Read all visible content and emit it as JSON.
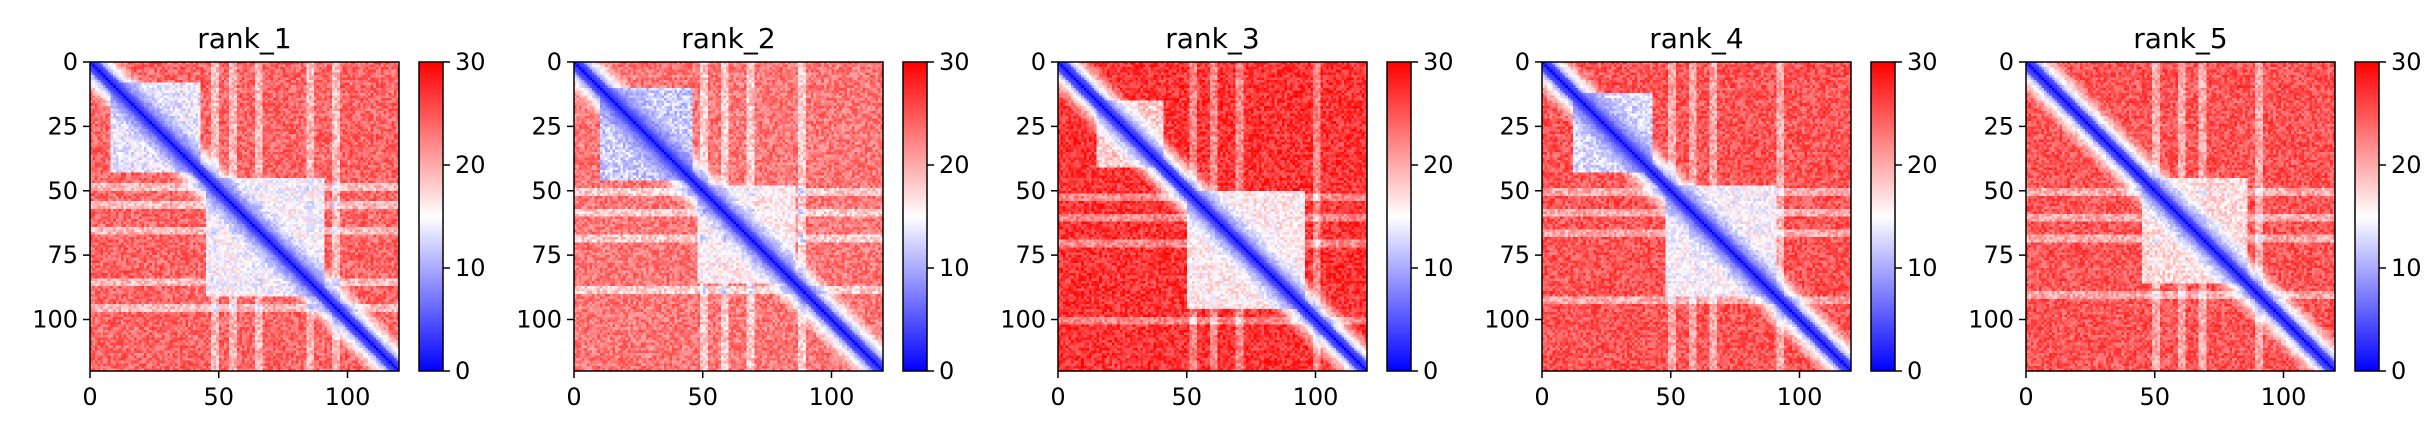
{
  "chart_data": [
    {
      "type": "heatmap",
      "title": "rank_1",
      "n": 120,
      "x_ticks": [
        0,
        50,
        100
      ],
      "y_ticks": [
        0,
        25,
        50,
        75,
        100
      ],
      "xlim": [
        0,
        120
      ],
      "ylim": [
        120,
        0
      ],
      "colorbar": {
        "min": 0,
        "max": 30,
        "ticks": [
          0,
          10,
          20,
          30
        ],
        "colormap": "bwr"
      },
      "pattern": {
        "diagonal_bands": [
          {
            "offset": 0,
            "width": 3,
            "value": 2
          }
        ],
        "blocks": [
          {
            "x": [
              8,
              42
            ],
            "y": [
              8,
              42
            ],
            "value": 11
          },
          {
            "x": [
              45,
              90
            ],
            "y": [
              45,
              90
            ],
            "value": 12
          }
        ],
        "stripe_rows": [
          48,
          55,
          65,
          85,
          95
        ],
        "base_value": 24
      }
    },
    {
      "type": "heatmap",
      "title": "rank_2",
      "n": 120,
      "x_ticks": [
        0,
        50,
        100
      ],
      "y_ticks": [
        0,
        25,
        50,
        75,
        100
      ],
      "xlim": [
        0,
        120
      ],
      "ylim": [
        120,
        0
      ],
      "colorbar": {
        "min": 0,
        "max": 30,
        "ticks": [
          0,
          10,
          20,
          30
        ],
        "colormap": "bwr"
      },
      "pattern": {
        "diagonal_bands": [
          {
            "offset": 0,
            "width": 3,
            "value": 2
          }
        ],
        "blocks": [
          {
            "x": [
              10,
              45
            ],
            "y": [
              10,
              45
            ],
            "value": 9
          },
          {
            "x": [
              48,
              85
            ],
            "y": [
              48,
              85
            ],
            "value": 13
          }
        ],
        "stripe_rows": [
          50,
          58,
          68,
          88
        ],
        "base_value": 23
      }
    },
    {
      "type": "heatmap",
      "title": "rank_3",
      "n": 120,
      "x_ticks": [
        0,
        50,
        100
      ],
      "y_ticks": [
        0,
        25,
        50,
        75,
        100
      ],
      "xlim": [
        0,
        120
      ],
      "ylim": [
        120,
        0
      ],
      "colorbar": {
        "min": 0,
        "max": 30,
        "ticks": [
          0,
          10,
          20,
          30
        ],
        "colormap": "bwr"
      },
      "pattern": {
        "diagonal_bands": [
          {
            "offset": 0,
            "width": 3,
            "value": 2
          }
        ],
        "blocks": [
          {
            "x": [
              15,
              40
            ],
            "y": [
              15,
              40
            ],
            "value": 15
          },
          {
            "x": [
              50,
              95
            ],
            "y": [
              50,
              95
            ],
            "value": 13
          }
        ],
        "stripe_rows": [
          52,
          60,
          70,
          100
        ],
        "base_value": 27
      }
    },
    {
      "type": "heatmap",
      "title": "rank_4",
      "n": 120,
      "x_ticks": [
        0,
        50,
        100
      ],
      "y_ticks": [
        0,
        25,
        50,
        75,
        100
      ],
      "xlim": [
        0,
        120
      ],
      "ylim": [
        120,
        0
      ],
      "colorbar": {
        "min": 0,
        "max": 30,
        "ticks": [
          0,
          10,
          20,
          30
        ],
        "colormap": "bwr"
      },
      "pattern": {
        "diagonal_bands": [
          {
            "offset": 0,
            "width": 3,
            "value": 2
          }
        ],
        "blocks": [
          {
            "x": [
              12,
              42
            ],
            "y": [
              12,
              42
            ],
            "value": 10
          },
          {
            "x": [
              48,
              90
            ],
            "y": [
              48,
              90
            ],
            "value": 12
          }
        ],
        "stripe_rows": [
          50,
          58,
          66,
          92
        ],
        "base_value": 25
      }
    },
    {
      "type": "heatmap",
      "title": "rank_5",
      "n": 120,
      "x_ticks": [
        0,
        50,
        100
      ],
      "y_ticks": [
        0,
        25,
        50,
        75,
        100
      ],
      "xlim": [
        0,
        120
      ],
      "ylim": [
        120,
        0
      ],
      "colorbar": {
        "min": 0,
        "max": 30,
        "ticks": [
          0,
          10,
          20,
          30
        ],
        "colormap": "bwr"
      },
      "pattern": {
        "diagonal_bands": [
          {
            "offset": 0,
            "width": 3,
            "value": 2
          }
        ],
        "blocks": [
          {
            "x": [
              45,
              85
            ],
            "y": [
              45,
              85
            ],
            "value": 14
          }
        ],
        "stripe_rows": [
          50,
          60,
          68,
          90
        ],
        "base_value": 25
      }
    }
  ]
}
